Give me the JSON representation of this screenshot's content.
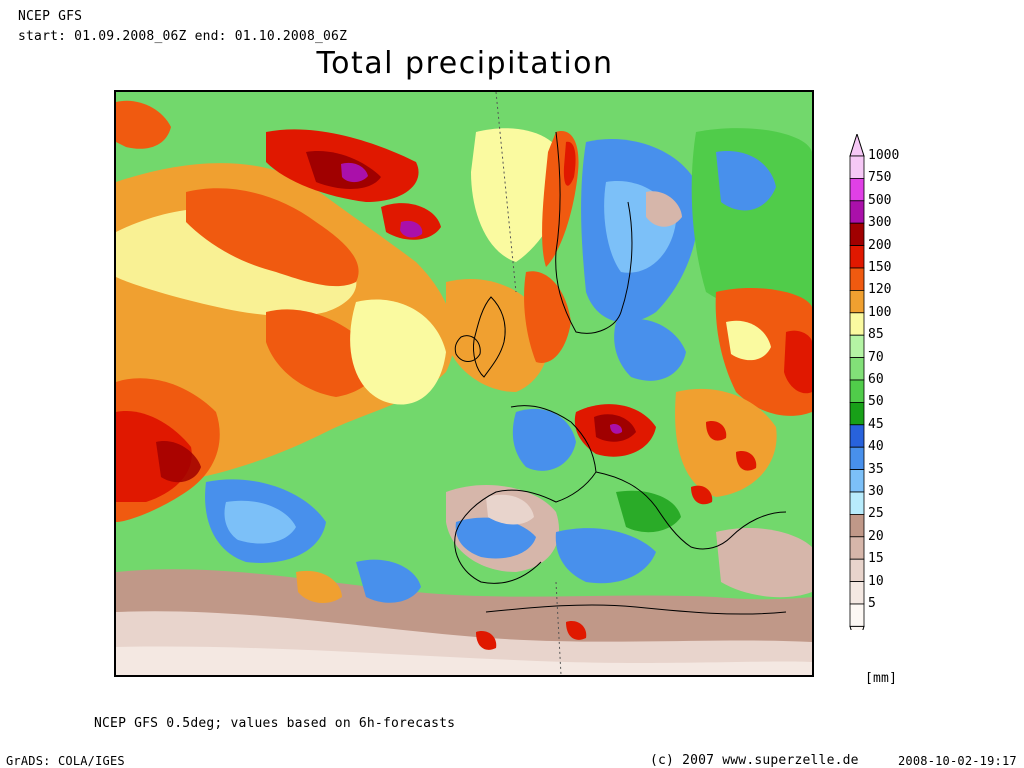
{
  "header": {
    "model": "NCEP GFS",
    "period": "start: 01.09.2008_06Z end: 01.10.2008_06Z"
  },
  "title": "Total precipitation",
  "legend": {
    "unit": "[mm]",
    "levels": [
      {
        "label": "1000",
        "color": "#f6c8f6"
      },
      {
        "label": "750",
        "color": "#e040e6"
      },
      {
        "label": "500",
        "color": "#aa10aa"
      },
      {
        "label": "300",
        "color": "#a00000"
      },
      {
        "label": "200",
        "color": "#e01800"
      },
      {
        "label": "150",
        "color": "#f05a10"
      },
      {
        "label": "120",
        "color": "#f0a030"
      },
      {
        "label": "100",
        "color": "#fafaa0"
      },
      {
        "label": "85",
        "color": "#b4f4a4"
      },
      {
        "label": "70",
        "color": "#82e078"
      },
      {
        "label": "60",
        "color": "#50cc4a"
      },
      {
        "label": "50",
        "color": "#18a018"
      },
      {
        "label": "45",
        "color": "#2862dc"
      },
      {
        "label": "40",
        "color": "#4890ec"
      },
      {
        "label": "35",
        "color": "#7cc0f8"
      },
      {
        "label": "30",
        "color": "#b8ecfc"
      },
      {
        "label": "25",
        "color": "#c09888"
      },
      {
        "label": "20",
        "color": "#d6b6aa"
      },
      {
        "label": "15",
        "color": "#e8d4cc"
      },
      {
        "label": "10",
        "color": "#f4e8e2"
      },
      {
        "label": "5",
        "color": "#fdf8f4"
      }
    ]
  },
  "footer": {
    "note": "NCEP GFS 0.5deg; values based on 6h-forecasts",
    "software": "GrADS: COLA/IGES",
    "copyright": "(c) 2007 www.superzelle.de",
    "timestamp": "2008-10-02-19:17"
  }
}
